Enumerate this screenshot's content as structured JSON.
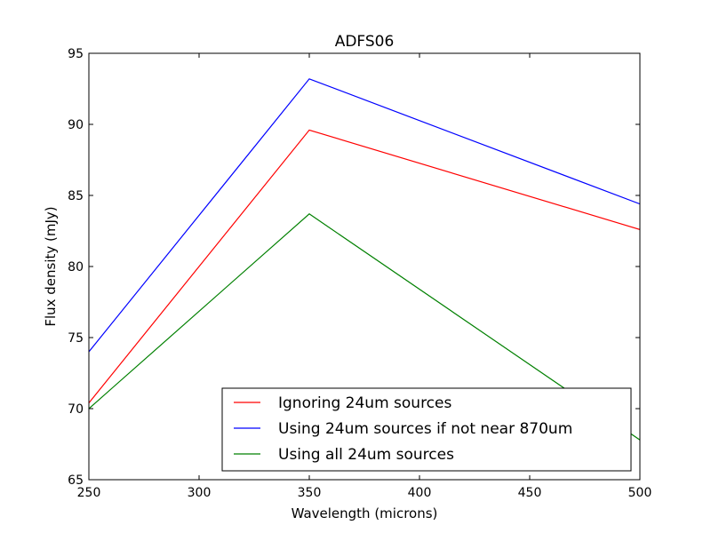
{
  "chart_data": {
    "type": "line",
    "title": "ADFS06",
    "xlabel": "Wavelength (microns)",
    "ylabel": "Flux density (mJy)",
    "xlim": [
      250,
      500
    ],
    "ylim": [
      65,
      95
    ],
    "xticks": [
      250,
      300,
      350,
      400,
      450,
      500
    ],
    "yticks": [
      65,
      70,
      75,
      80,
      85,
      90,
      95
    ],
    "grid": false,
    "legend_position": "bottom-right",
    "x": [
      250,
      350,
      500
    ],
    "series": [
      {
        "name": "Ignoring 24um sources",
        "color": "#ff0000",
        "values": [
          70.4,
          89.6,
          82.6
        ]
      },
      {
        "name": "Using 24um sources if not near 870um",
        "color": "#0000ff",
        "values": [
          74.0,
          93.2,
          84.4
        ]
      },
      {
        "name": "Using all 24um sources",
        "color": "#008000",
        "values": [
          70.0,
          83.7,
          67.8
        ]
      }
    ]
  }
}
